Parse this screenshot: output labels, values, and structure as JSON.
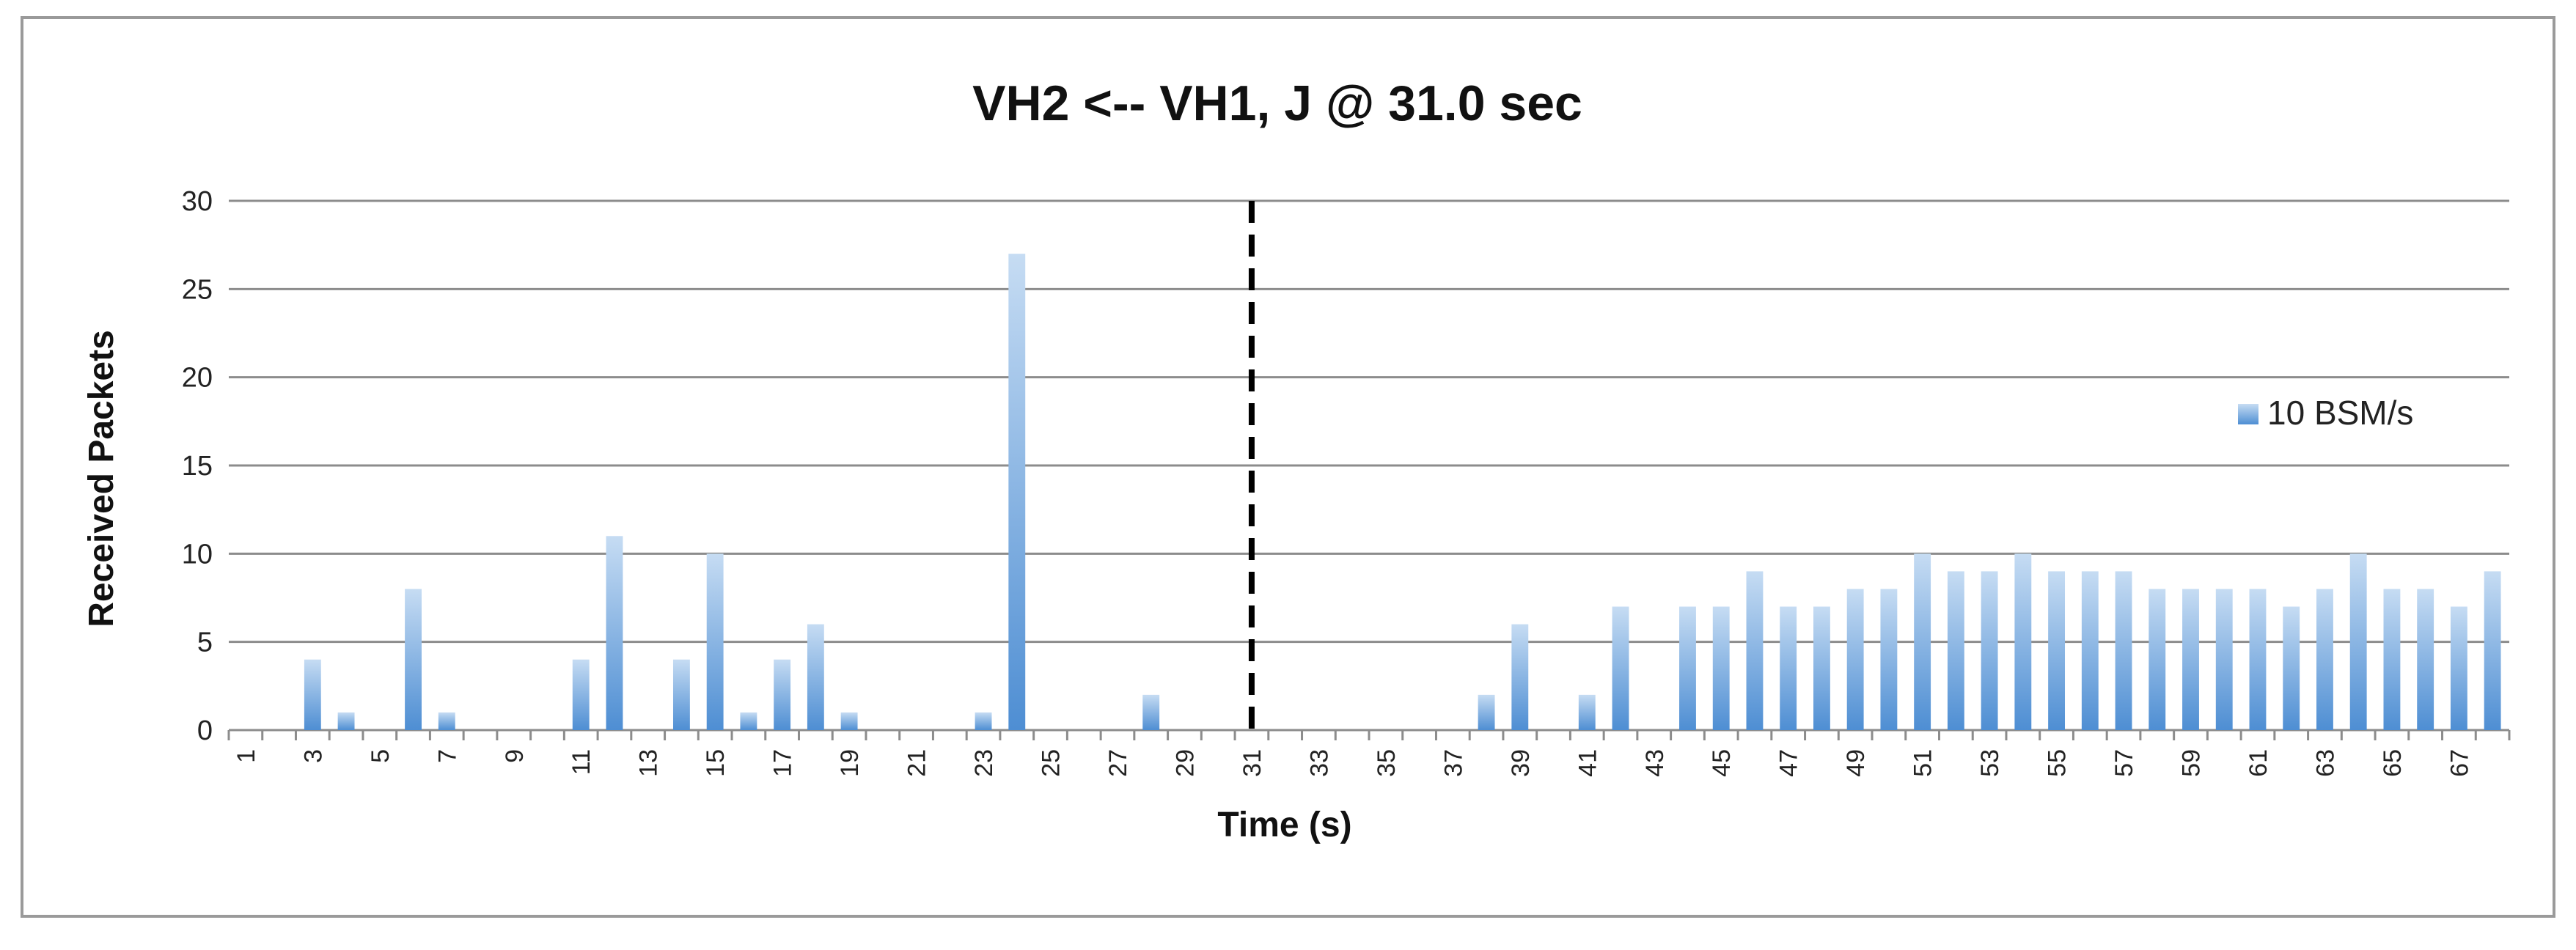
{
  "chart_data": {
    "type": "bar",
    "title": "VH2 <-- VH1, J @ 31.0 sec",
    "xlabel": "Time (s)",
    "ylabel": "Received Packets",
    "ylim": [
      0,
      30
    ],
    "y_ticks": [
      0,
      5,
      10,
      15,
      20,
      25,
      30
    ],
    "x_tick_labels": [
      "1",
      "3",
      "5",
      "7",
      "9",
      "11",
      "13",
      "15",
      "17",
      "19",
      "21",
      "23",
      "25",
      "27",
      "29",
      "31",
      "33",
      "35",
      "37",
      "39",
      "41",
      "43",
      "45",
      "47",
      "49",
      "51",
      "53",
      "55",
      "57",
      "59",
      "61",
      "63",
      "65",
      "67"
    ],
    "categories": [
      1,
      2,
      3,
      4,
      5,
      6,
      7,
      8,
      9,
      10,
      11,
      12,
      13,
      14,
      15,
      16,
      17,
      18,
      19,
      20,
      21,
      22,
      23,
      24,
      25,
      26,
      27,
      28,
      29,
      30,
      31,
      32,
      33,
      34,
      35,
      36,
      37,
      38,
      39,
      40,
      41,
      42,
      43,
      44,
      45,
      46,
      47,
      48,
      49,
      50,
      51,
      52,
      53,
      54,
      55,
      56,
      57,
      58,
      59,
      60,
      61,
      62,
      63,
      64,
      65,
      66,
      67,
      68
    ],
    "series": [
      {
        "name": "10 BSM/s",
        "values": [
          0,
          0,
          4,
          1,
          0,
          8,
          1,
          0,
          0,
          0,
          4,
          11,
          0,
          4,
          10,
          1,
          4,
          6,
          1,
          0,
          0,
          0,
          1,
          27,
          0,
          0,
          0,
          2,
          0,
          0,
          0,
          0,
          0,
          0,
          0,
          0,
          0,
          2,
          6,
          0,
          2,
          7,
          0,
          7,
          7,
          9,
          7,
          7,
          8,
          8,
          10,
          9,
          9,
          10,
          9,
          9,
          9,
          8,
          8,
          8,
          8,
          7,
          8,
          10,
          8,
          8,
          7,
          9
        ]
      }
    ],
    "annotation": {
      "type": "dashed-vertical-line",
      "x": 31
    },
    "grid": true,
    "legend_position": "right",
    "colors": {
      "bar_top": "#c6dcf3",
      "bar_bottom": "#4e8ed3",
      "gridline": "#8c8c8c",
      "dashed": "#000000"
    }
  }
}
